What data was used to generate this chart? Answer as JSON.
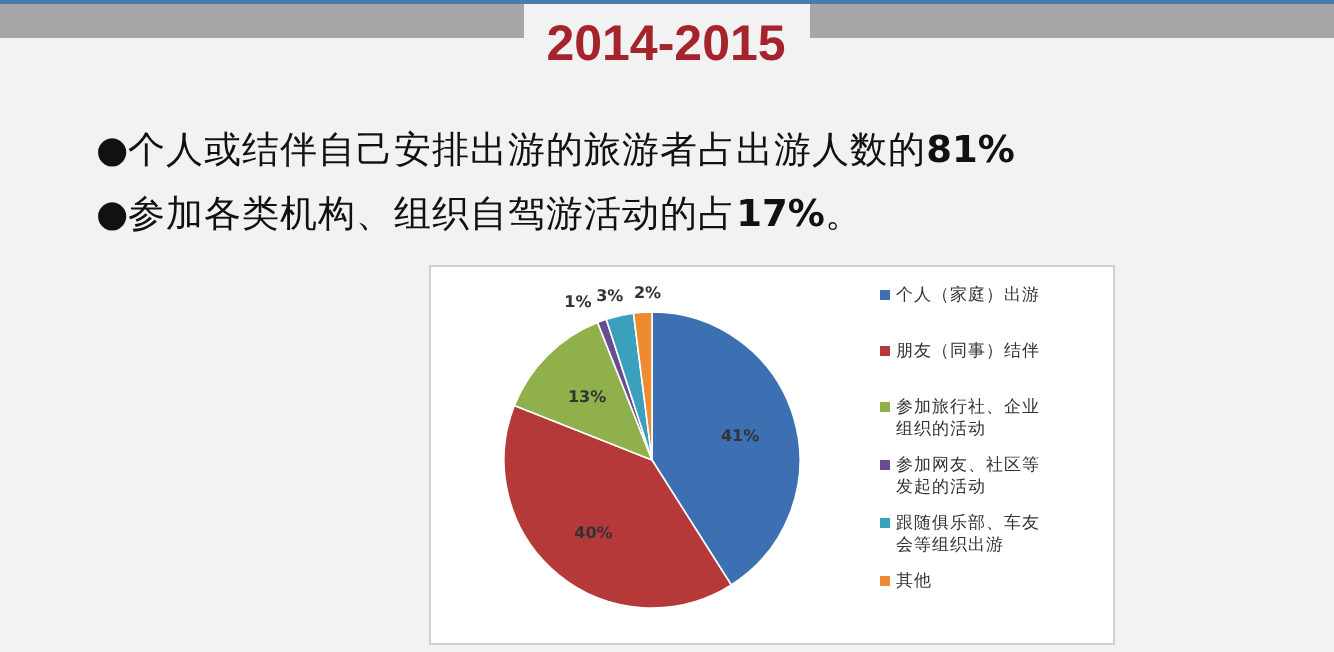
{
  "chart_data": {
    "type": "pie",
    "title": "2014-2015",
    "annotations": [
      "●个人或结伴自己安排出游的旅游者占出游人数的**81%**",
      "●参加各类机构、组织自驾游活动的占**17%**。"
    ],
    "categories": [
      "个人（家庭）出游",
      "朋友（同事）结伴",
      "参加旅行社、企业组织的活动",
      "参加网友、社区等发起的活动",
      "跟随俱乐部、车友会等组织出游",
      "其他"
    ],
    "values": [
      41,
      40,
      13,
      1,
      3,
      2
    ],
    "value_labels": [
      "41%",
      "40%",
      "13%",
      "1%",
      "3%",
      "2%"
    ],
    "colors": [
      "#3c70b2",
      "#b6393a",
      "#8fb04a",
      "#6a4c93",
      "#3aa0bd",
      "#ee8a2f"
    ],
    "legend": "right"
  }
}
